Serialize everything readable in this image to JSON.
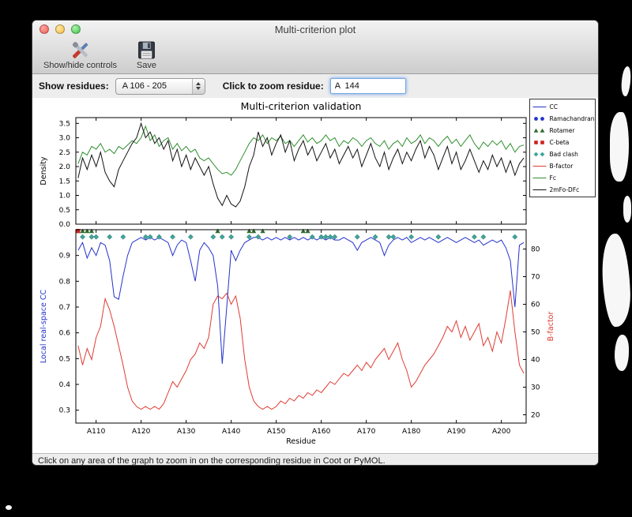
{
  "window": {
    "title": "Multi-criterion plot",
    "toolbar": {
      "show_hide_label": "Show/hide controls",
      "save_label": "Save"
    },
    "controls": {
      "show_residues_label": "Show residues:",
      "residue_range_value": "A 106 - 205",
      "zoom_label": "Click to zoom residue:",
      "zoom_value": "A  144"
    },
    "status_text": "Click on any area of the graph to zoom in on the corresponding residue in Coot or PyMOL."
  },
  "chart_data": {
    "type": "line",
    "title": "Multi-criterion validation",
    "xlabel": "Residue",
    "x_range": [
      106,
      205
    ],
    "x_ticks": [
      110,
      120,
      130,
      140,
      150,
      160,
      170,
      180,
      190,
      200
    ],
    "x_tick_labels": [
      "A110",
      "A120",
      "A130",
      "A140",
      "A150",
      "A160",
      "A170",
      "A180",
      "A190",
      "A200"
    ],
    "top_plot": {
      "ylabel": "Density",
      "ylim": [
        0,
        3.7
      ],
      "yticks": [
        "0.0",
        "0.5",
        "1.0",
        "1.5",
        "2.0",
        "2.5",
        "3.0",
        "3.5"
      ],
      "series": [
        {
          "name": "Fc",
          "color": "#2f8f2f",
          "values": [
            2.1,
            2.5,
            2.4,
            2.7,
            2.6,
            2.8,
            2.5,
            2.6,
            2.45,
            2.7,
            2.6,
            2.75,
            2.9,
            2.8,
            3.0,
            3.4,
            2.9,
            3.1,
            2.7,
            2.9,
            3.0,
            2.6,
            2.8,
            2.55,
            2.7,
            2.5,
            2.6,
            2.3,
            2.2,
            2.3,
            2.1,
            1.9,
            1.75,
            1.8,
            1.7,
            1.9,
            2.2,
            2.5,
            2.8,
            3.0,
            2.9,
            3.1,
            2.8,
            3.0,
            2.9,
            3.05,
            2.8,
            2.9,
            2.7,
            2.9,
            3.1,
            2.85,
            3.0,
            2.8,
            2.9,
            3.1,
            2.9,
            3.0,
            2.7,
            2.9,
            2.8,
            3.0,
            2.9,
            2.7,
            2.9,
            3.0,
            2.8,
            2.7,
            2.9,
            2.6,
            2.8,
            2.9,
            2.7,
            3.0,
            2.8,
            2.9,
            3.1,
            2.8,
            3.0,
            2.9,
            2.7,
            2.9,
            3.05,
            2.8,
            2.95,
            2.7,
            2.9,
            3.1,
            2.8,
            2.6,
            2.85,
            2.7,
            2.9,
            2.75,
            2.9,
            2.6,
            2.8,
            2.5,
            2.7,
            2.75
          ]
        },
        {
          "name": "2mFo-DFc",
          "color": "#111111",
          "values": [
            1.6,
            2.3,
            1.9,
            2.4,
            2.0,
            2.5,
            1.8,
            1.5,
            1.3,
            1.9,
            2.2,
            2.5,
            2.8,
            3.0,
            3.5,
            3.0,
            3.2,
            2.8,
            3.0,
            2.6,
            2.9,
            2.2,
            2.6,
            2.0,
            2.4,
            1.9,
            2.3,
            2.0,
            1.7,
            2.0,
            1.4,
            0.9,
            0.65,
            1.0,
            0.7,
            0.6,
            0.8,
            1.3,
            2.0,
            2.4,
            3.2,
            2.7,
            3.0,
            2.4,
            2.8,
            3.1,
            2.5,
            2.9,
            2.2,
            2.6,
            2.9,
            2.4,
            2.7,
            2.2,
            2.5,
            2.8,
            2.3,
            2.6,
            2.1,
            2.4,
            2.7,
            2.3,
            2.6,
            2.0,
            2.4,
            2.8,
            2.3,
            2.0,
            2.5,
            1.9,
            2.3,
            2.6,
            2.1,
            2.5,
            2.2,
            2.6,
            2.9,
            2.3,
            2.7,
            2.4,
            1.9,
            2.3,
            2.7,
            2.1,
            2.5,
            1.9,
            2.2,
            2.6,
            2.2,
            1.8,
            2.2,
            1.9,
            2.4,
            2.0,
            2.3,
            1.8,
            2.2,
            1.7,
            2.1,
            2.3
          ]
        }
      ]
    },
    "bottom_plot": {
      "ylabel_left": "Local real-space CC",
      "ylabel_left_color": "#2433cc",
      "ylabel_right": "B-factor",
      "ylabel_right_color": "#e03c34",
      "ylim_left": [
        0.25,
        1.0
      ],
      "yticks_left": [
        "0.3",
        "0.4",
        "0.5",
        "0.6",
        "0.7",
        "0.8",
        "0.9"
      ],
      "ylim_right": [
        17,
        87
      ],
      "yticks_right": [
        "20",
        "30",
        "40",
        "50",
        "60",
        "70",
        "80"
      ],
      "cc_series": {
        "name": "CC",
        "color": "#2433cc",
        "values": [
          0.92,
          0.95,
          0.89,
          0.93,
          0.9,
          0.95,
          0.94,
          0.88,
          0.74,
          0.73,
          0.82,
          0.9,
          0.95,
          0.96,
          0.97,
          0.96,
          0.97,
          0.96,
          0.97,
          0.96,
          0.95,
          0.9,
          0.94,
          0.96,
          0.95,
          0.88,
          0.8,
          0.92,
          0.95,
          0.93,
          0.9,
          0.78,
          0.48,
          0.7,
          0.92,
          0.88,
          0.92,
          0.95,
          0.96,
          0.97,
          0.97,
          0.96,
          0.97,
          0.96,
          0.97,
          0.96,
          0.97,
          0.96,
          0.97,
          0.96,
          0.97,
          0.96,
          0.97,
          0.96,
          0.97,
          0.96,
          0.97,
          0.96,
          0.96,
          0.97,
          0.96,
          0.95,
          0.92,
          0.95,
          0.96,
          0.97,
          0.96,
          0.95,
          0.9,
          0.94,
          0.96,
          0.97,
          0.96,
          0.97,
          0.95,
          0.96,
          0.97,
          0.96,
          0.97,
          0.96,
          0.95,
          0.96,
          0.97,
          0.96,
          0.95,
          0.96,
          0.97,
          0.96,
          0.95,
          0.96,
          0.94,
          0.95,
          0.96,
          0.95,
          0.96,
          0.93,
          0.88,
          0.7,
          0.94,
          0.95
        ]
      },
      "bfactor_series": {
        "name": "B-factor",
        "color": "#e03c34",
        "values": [
          45,
          38,
          44,
          40,
          48,
          52,
          62,
          58,
          52,
          45,
          38,
          30,
          25,
          23,
          22,
          23,
          22,
          23,
          22,
          24,
          28,
          32,
          30,
          33,
          36,
          40,
          42,
          46,
          44,
          48,
          60,
          63,
          62,
          64,
          60,
          63,
          55,
          40,
          30,
          25,
          23,
          22,
          23,
          22,
          23,
          25,
          24,
          26,
          25,
          27,
          26,
          28,
          27,
          29,
          28,
          30,
          32,
          31,
          33,
          35,
          34,
          36,
          38,
          36,
          39,
          37,
          40,
          42,
          44,
          40,
          43,
          46,
          40,
          36,
          30,
          32,
          35,
          38,
          40,
          42,
          45,
          48,
          52,
          50,
          54,
          48,
          52,
          47,
          50,
          53,
          45,
          48,
          43,
          50,
          46,
          55,
          65,
          50,
          38,
          35
        ]
      },
      "markers": {
        "bad_clash": {
          "color": "#3fa69b",
          "y": 0.972,
          "x": [
            107,
            109,
            110,
            113,
            116,
            121,
            122,
            124,
            127,
            131,
            136,
            138,
            140,
            144,
            146,
            153,
            158,
            160,
            161,
            162,
            163,
            168,
            172,
            175,
            176,
            180,
            186,
            194,
            196,
            203
          ]
        },
        "rotamer": {
          "color": "#2d6a2d",
          "y": 0.995,
          "x": [
            106,
            107,
            108,
            109,
            137,
            144,
            145,
            147,
            156,
            157
          ]
        },
        "c_beta": {
          "color": "#cc2222",
          "y": 0.995,
          "x": [
            106
          ]
        }
      }
    },
    "legend": [
      {
        "label": "CC",
        "symbol": "line",
        "color": "#2433cc"
      },
      {
        "label": "Ramachandran",
        "symbol": "circles",
        "color": "#2433cc"
      },
      {
        "label": "Rotamer",
        "symbol": "triangles",
        "color": "#2d6a2d"
      },
      {
        "label": "C-beta",
        "symbol": "squares",
        "color": "#cc2222"
      },
      {
        "label": "Bad clash",
        "symbol": "diamonds",
        "color": "#3fa69b"
      },
      {
        "label": "B-factor",
        "symbol": "line",
        "color": "#e03c34"
      },
      {
        "label": "Fc",
        "symbol": "line",
        "color": "#2f8f2f"
      },
      {
        "label": "2mFo-DFc",
        "symbol": "line",
        "color": "#111111"
      }
    ]
  }
}
